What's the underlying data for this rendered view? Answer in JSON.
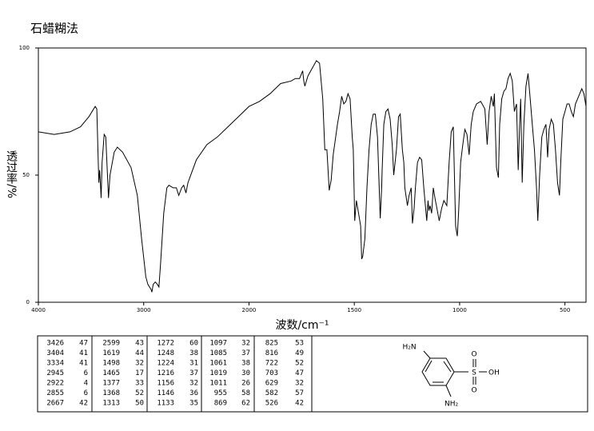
{
  "chart_data": {
    "type": "line",
    "title": "石蜡糊法",
    "ylabel": "透过率/%",
    "xlabel": "波数/cm⁻¹",
    "xlim": [
      4000,
      400
    ],
    "x_scale_break": 2000,
    "ylim": [
      0,
      100
    ],
    "xticks": [
      4000,
      3000,
      2000,
      1500,
      1000,
      500
    ],
    "yticks": [
      0,
      50,
      100
    ],
    "series": [
      {
        "color": "#000000",
        "x": [
          4000,
          3850,
          3700,
          3600,
          3520,
          3460,
          3445,
          3426,
          3418,
          3404,
          3395,
          3375,
          3360,
          3334,
          3320,
          3280,
          3250,
          3200,
          3120,
          3060,
          3020,
          2980,
          2960,
          2945,
          2930,
          2922,
          2910,
          2890,
          2870,
          2855,
          2840,
          2810,
          2780,
          2760,
          2720,
          2690,
          2667,
          2640,
          2620,
          2599,
          2580,
          2500,
          2400,
          2300,
          2200,
          2100,
          2000,
          1950,
          1900,
          1850,
          1800,
          1780,
          1760,
          1745,
          1740,
          1735,
          1720,
          1700,
          1680,
          1665,
          1650,
          1640,
          1630,
          1619,
          1610,
          1600,
          1580,
          1570,
          1560,
          1550,
          1540,
          1530,
          1520,
          1510,
          1505,
          1498,
          1490,
          1480,
          1470,
          1465,
          1460,
          1450,
          1440,
          1430,
          1420,
          1410,
          1400,
          1390,
          1377,
          1370,
          1368,
          1360,
          1350,
          1340,
          1330,
          1320,
          1313,
          1300,
          1290,
          1282,
          1272,
          1265,
          1260,
          1248,
          1240,
          1230,
          1224,
          1216,
          1210,
          1200,
          1190,
          1180,
          1170,
          1156,
          1150,
          1146,
          1140,
          1133,
          1125,
          1115,
          1110,
          1097,
          1090,
          1085,
          1075,
          1061,
          1050,
          1040,
          1030,
          1019,
          1011,
          1005,
          995,
          985,
          975,
          965,
          955,
          945,
          935,
          920,
          900,
          880,
          869,
          860,
          850,
          840,
          835,
          825,
          816,
          810,
          800,
          790,
          780,
          770,
          760,
          750,
          740,
          730,
          722,
          715,
          710,
          703,
          695,
          685,
          675,
          665,
          655,
          645,
          635,
          629,
          620,
          610,
          600,
          590,
          582,
          575,
          565,
          555,
          545,
          535,
          526,
          520,
          510,
          500,
          490,
          480,
          470,
          460,
          450,
          440,
          420,
          410,
          400
        ],
        "values": [
          67,
          66,
          67,
          69,
          73,
          77,
          76,
          47,
          52,
          41,
          55,
          66,
          65,
          41,
          50,
          59,
          61,
          59,
          53,
          42,
          25,
          10,
          7,
          6,
          5,
          4,
          7,
          8,
          7,
          6,
          15,
          35,
          45,
          46,
          45,
          45,
          42,
          45,
          46,
          43,
          47,
          56,
          62,
          65,
          69,
          73,
          77,
          79,
          82,
          86,
          87,
          88,
          88,
          91,
          87,
          85,
          89,
          92,
          95,
          94,
          80,
          60,
          60,
          44,
          48,
          58,
          70,
          75,
          81,
          78,
          79,
          82,
          80,
          65,
          60,
          32,
          40,
          35,
          30,
          17,
          18,
          25,
          45,
          60,
          70,
          74,
          74,
          65,
          33,
          45,
          52,
          70,
          75,
          76,
          72,
          62,
          50,
          60,
          73,
          74,
          60,
          55,
          45,
          38,
          42,
          45,
          31,
          37,
          45,
          55,
          57,
          56,
          45,
          32,
          40,
          36,
          38,
          35,
          45,
          40,
          38,
          32,
          35,
          37,
          40,
          38,
          55,
          67,
          69,
          30,
          26,
          35,
          55,
          62,
          68,
          66,
          58,
          70,
          75,
          78,
          79,
          76,
          62,
          75,
          81,
          77,
          82,
          53,
          49,
          70,
          80,
          83,
          84,
          88,
          90,
          87,
          75,
          78,
          52,
          70,
          80,
          47,
          70,
          85,
          90,
          80,
          70,
          60,
          45,
          32,
          50,
          65,
          68,
          70,
          57,
          68,
          72,
          70,
          60,
          47,
          42,
          55,
          72,
          75,
          78,
          78,
          75,
          73,
          78,
          80,
          84,
          82,
          77
        ]
      }
    ]
  },
  "table": {
    "rows": [
      [
        "3426",
        "47",
        "2599",
        "43",
        "1272",
        "60",
        "1097",
        "32",
        "825",
        "53"
      ],
      [
        "3404",
        "41",
        "1619",
        "44",
        "1248",
        "38",
        "1085",
        "37",
        "816",
        "49"
      ],
      [
        "3334",
        "41",
        "1498",
        "32",
        "1224",
        "31",
        "1061",
        "38",
        "722",
        "52"
      ],
      [
        "2945",
        "6",
        "1465",
        "17",
        "1216",
        "37",
        "1019",
        "30",
        "703",
        "47"
      ],
      [
        "2922",
        "4",
        "1377",
        "33",
        "1156",
        "32",
        "1011",
        "26",
        "629",
        "32"
      ],
      [
        "2855",
        "6",
        "1368",
        "52",
        "1146",
        "36",
        "955",
        "58",
        "582",
        "57"
      ],
      [
        "2667",
        "42",
        "1313",
        "50",
        "1133",
        "35",
        "869",
        "62",
        "526",
        "42"
      ]
    ]
  },
  "structure": {
    "labels": [
      "H₂N",
      "S",
      "O",
      "O",
      "OH",
      "NH₂"
    ]
  }
}
